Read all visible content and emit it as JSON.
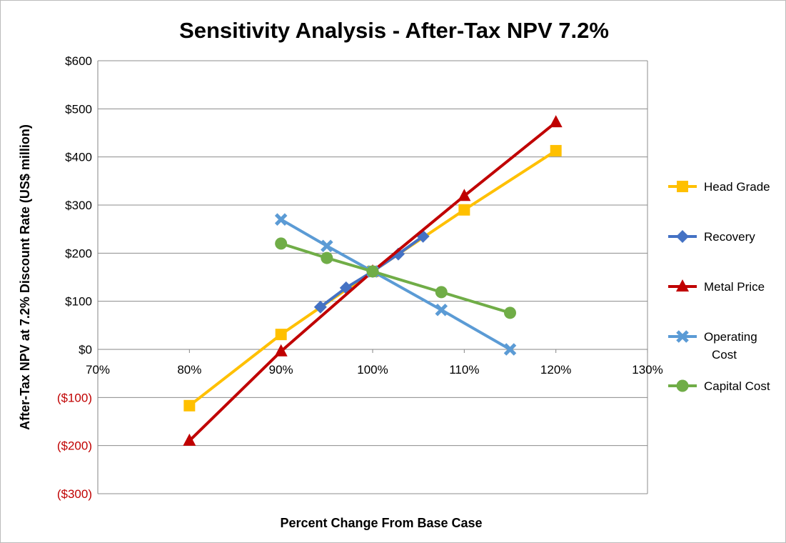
{
  "chart_data": {
    "type": "line",
    "title": "Sensitivity Analysis - After-Tax NPV 7.2%",
    "xlabel": "Percent Change  From Base Case",
    "ylabel": "After-Tax NPV at 7.2% Discount Rate (US$ million)",
    "xlim": [
      70,
      130
    ],
    "ylim": [
      -300,
      600
    ],
    "x_ticks": [
      "70%",
      "80%",
      "90%",
      "100%",
      "110%",
      "120%",
      "130%"
    ],
    "y_ticks": [
      "$600",
      "$500",
      "$400",
      "$300",
      "$200",
      "$100",
      "$0",
      "($100)",
      "($200)",
      "($300)"
    ],
    "grid": true,
    "legend_position": "right",
    "series": [
      {
        "name": "Head Grade",
        "color": "#ffc000",
        "marker": "square",
        "x": [
          80,
          90,
          100,
          110,
          120
        ],
        "y": [
          -117,
          31,
          162,
          290,
          413
        ]
      },
      {
        "name": "Recovery",
        "color": "#4472c4",
        "marker": "diamond",
        "x": [
          94.3,
          97.1,
          100,
          102.8,
          105.5
        ],
        "y": [
          88,
          128,
          162,
          198,
          235
        ]
      },
      {
        "name": "Metal Price",
        "color": "#c00000",
        "marker": "triangle",
        "x": [
          80,
          90,
          100,
          110,
          120
        ],
        "y": [
          -190,
          -4,
          162,
          319,
          472
        ]
      },
      {
        "name": "Operating Cost",
        "color": "#5b9bd5",
        "marker": "x",
        "x": [
          90,
          95,
          100,
          107.5,
          115
        ],
        "y": [
          270,
          215,
          162,
          82,
          0
        ]
      },
      {
        "name": "Capital Cost",
        "color": "#70ad47",
        "marker": "circle",
        "x": [
          90,
          95,
          100,
          107.5,
          115
        ],
        "y": [
          220,
          190,
          162,
          119,
          76
        ]
      }
    ],
    "legend_labels": [
      [
        "Head Grade"
      ],
      [
        "Recovery"
      ],
      [
        "Metal Price"
      ],
      [
        "Operating",
        "Cost"
      ],
      [
        "Capital Cost"
      ]
    ]
  }
}
